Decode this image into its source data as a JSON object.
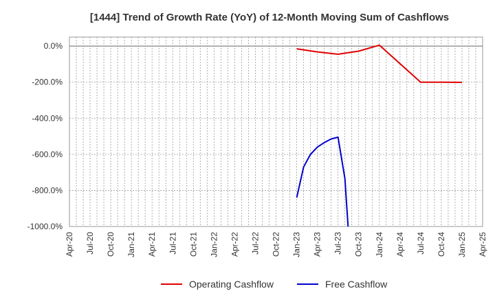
{
  "chart_data": {
    "type": "line",
    "title": "[1444]  Trend of Growth Rate (YoY) of 12-Month Moving Sum of Cashflows",
    "xlabel": "",
    "ylabel": "",
    "ylim": [
      -1000,
      50
    ],
    "y_ticks": [
      0,
      -200,
      -400,
      -600,
      -800,
      -1000
    ],
    "y_tick_labels": [
      "0.0%",
      "-200.0%",
      "-400.0%",
      "-600.0%",
      "-800.0%",
      "-1000.0%"
    ],
    "x_range": [
      "2020-04",
      "2025-04"
    ],
    "x_tick_labels": [
      "Apr-20",
      "Jul-20",
      "Oct-20",
      "Jan-21",
      "Apr-21",
      "Jul-21",
      "Oct-21",
      "Jan-22",
      "Apr-22",
      "Jul-22",
      "Oct-22",
      "Jan-23",
      "Apr-23",
      "Jul-23",
      "Oct-23",
      "Jan-24",
      "Apr-24",
      "Jul-24",
      "Oct-24",
      "Jan-25",
      "Apr-25"
    ],
    "grid": true,
    "legend_position": "bottom",
    "series": [
      {
        "name": "Operating Cashflow",
        "color": "#e00000",
        "points": [
          [
            "2023-01",
            -15
          ],
          [
            "2023-04",
            -32
          ],
          [
            "2023-07",
            -45
          ],
          [
            "2023-10",
            -28
          ],
          [
            "2024-01",
            5
          ],
          [
            "2024-07",
            -200
          ],
          [
            "2024-10",
            -200
          ],
          [
            "2025-01",
            -201
          ]
        ]
      },
      {
        "name": "Free Cashflow",
        "color": "#0000cc",
        "points": [
          [
            "2023-01",
            -840
          ],
          [
            "2023-02",
            -670
          ],
          [
            "2023-03",
            -600
          ],
          [
            "2023-04",
            -560
          ],
          [
            "2023-05",
            -535
          ],
          [
            "2023-06",
            -515
          ],
          [
            "2023-07",
            -505
          ],
          [
            "2023-08",
            -735
          ],
          [
            "2023-08-15",
            -1000
          ]
        ]
      }
    ]
  }
}
